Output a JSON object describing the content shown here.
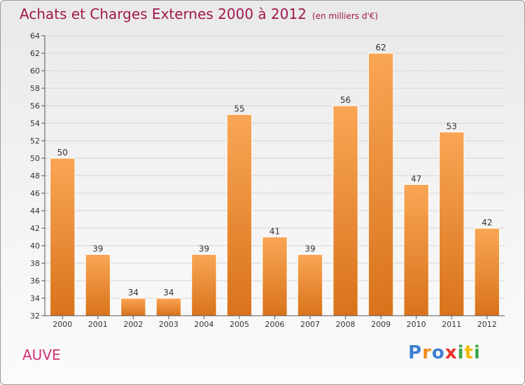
{
  "chart_data": {
    "type": "bar",
    "title": "Achats et Charges Externes 2000 à 2012",
    "unit": "(en milliers d'€)",
    "categories": [
      "2000",
      "2001",
      "2002",
      "2003",
      "2004",
      "2005",
      "2006",
      "2007",
      "2008",
      "2009",
      "2010",
      "2011",
      "2012"
    ],
    "values": [
      50,
      39,
      34,
      34,
      39,
      55,
      41,
      39,
      56,
      62,
      47,
      53,
      42
    ],
    "ylim": [
      32,
      64
    ],
    "yticks": [
      32,
      34,
      36,
      38,
      40,
      42,
      44,
      46,
      48,
      50,
      52,
      54,
      56,
      58,
      60,
      62,
      64
    ],
    "grid": true,
    "bar_color_top": "#f9a654",
    "bar_color_bottom": "#d9731b"
  },
  "footer": {
    "place": "AUVE",
    "logo": "Proxiti",
    "logo_colors": [
      "#3f7fd0",
      "#f08a1c",
      "#3f7fd0",
      "#e8302a",
      "#3ea84a",
      "#f5b800",
      "#3ea84a"
    ]
  }
}
